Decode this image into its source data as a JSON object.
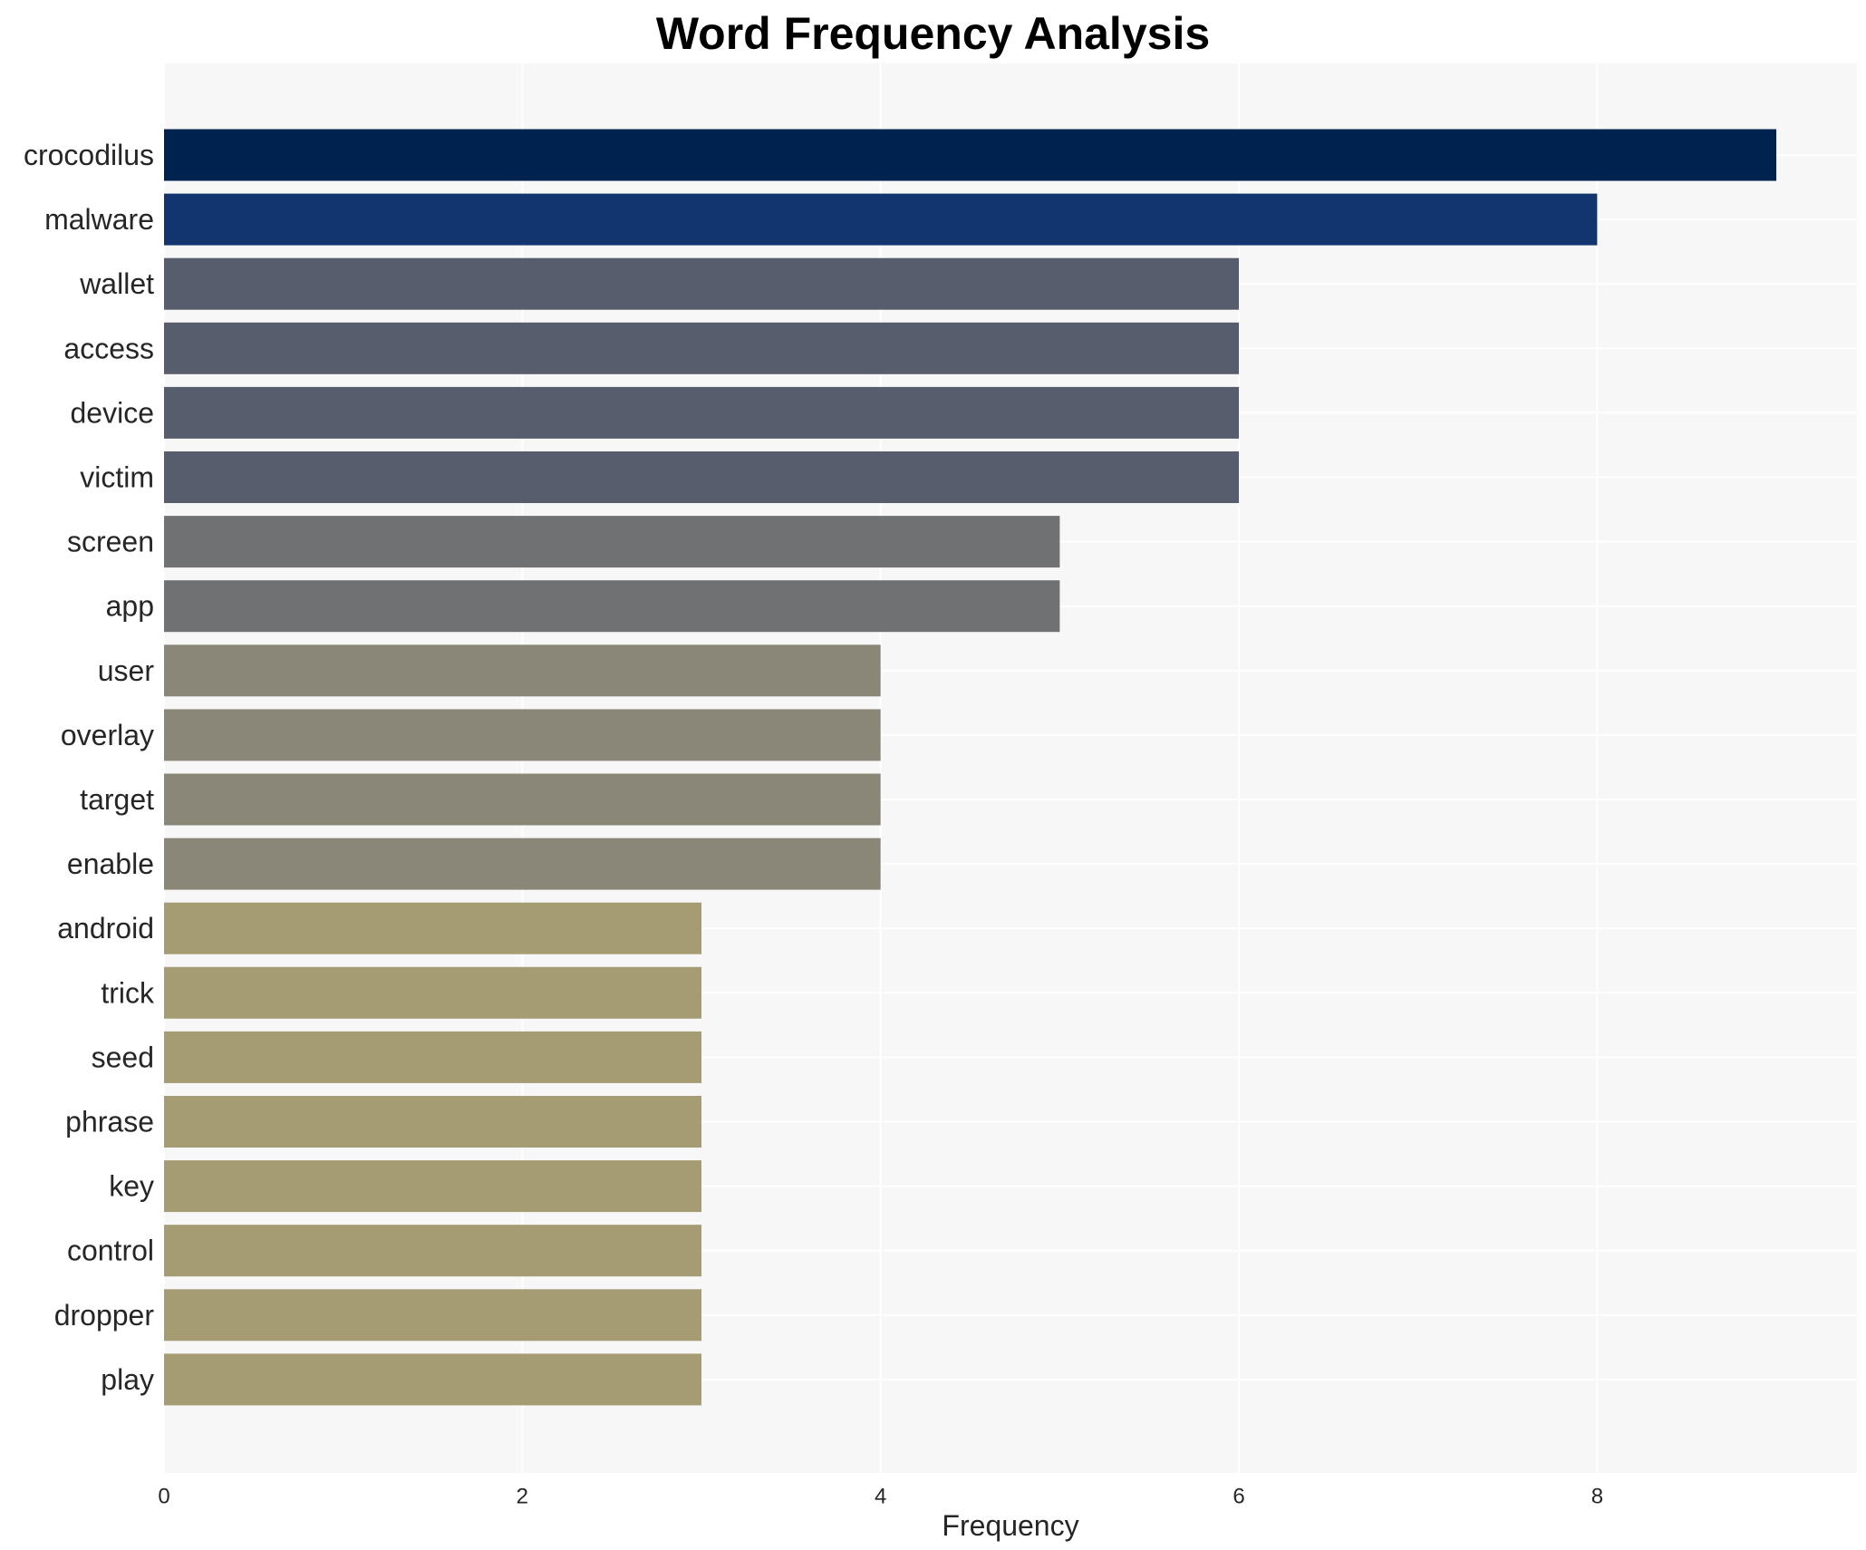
{
  "chart_data": {
    "type": "bar",
    "orientation": "horizontal",
    "title": "Word Frequency Analysis",
    "xlabel": "Frequency",
    "ylabel": "",
    "categories": [
      "crocodilus",
      "malware",
      "wallet",
      "access",
      "device",
      "victim",
      "screen",
      "app",
      "user",
      "overlay",
      "target",
      "enable",
      "android",
      "trick",
      "seed",
      "phrase",
      "key",
      "control",
      "dropper",
      "play"
    ],
    "values": [
      9,
      8,
      6,
      6,
      6,
      6,
      5,
      5,
      4,
      4,
      4,
      4,
      3,
      3,
      3,
      3,
      3,
      3,
      3,
      3
    ],
    "colors": [
      "#00224e",
      "#123570",
      "#575d6d",
      "#575d6d",
      "#575d6d",
      "#575d6d",
      "#707173",
      "#707173",
      "#8a8779",
      "#8a8779",
      "#8a8779",
      "#8a8779",
      "#a59c74",
      "#a59c74",
      "#a59c74",
      "#a59c74",
      "#a59c74",
      "#a59c74",
      "#a59c74",
      "#a59c74"
    ],
    "xticks": [
      0,
      2,
      4,
      6,
      8
    ],
    "xlim": [
      0,
      9.45
    ],
    "grid": true,
    "plot_background": "#f7f7f7",
    "grid_color": "#ffffff"
  }
}
